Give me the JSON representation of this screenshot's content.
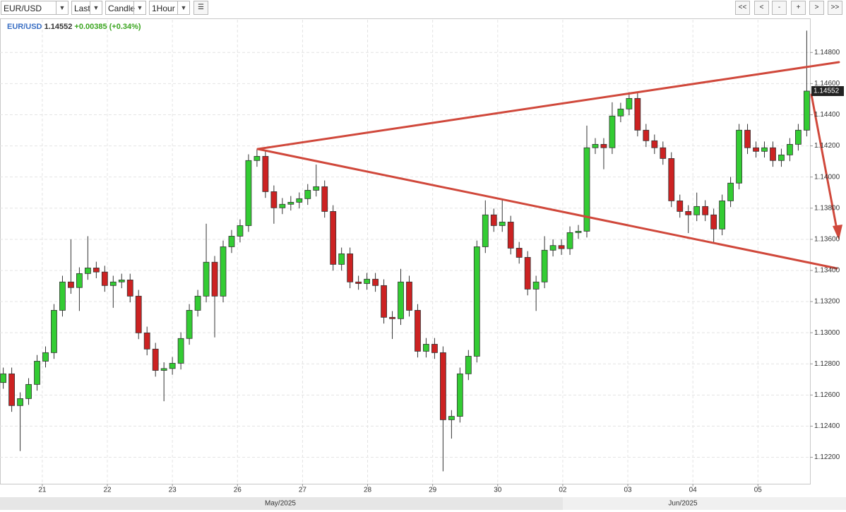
{
  "toolbar": {
    "symbol": "EUR/USD",
    "price_type": "Last",
    "chart_type": "Candle",
    "interval": "1Hour",
    "buttons": [
      "<<",
      "<",
      "-",
      "+",
      ">",
      ">>"
    ]
  },
  "header": {
    "symbol": "EUR/USD",
    "price": "1.14552",
    "change": "+0.00385 (+0.34%)"
  },
  "chart_data": {
    "type": "candlestick",
    "up_color": "#33cc33",
    "down_color": "#cc2222",
    "grid": true,
    "periods": [
      "May/2025",
      "Jun/2025"
    ],
    "last_price": 1.14552,
    "xlim": [
      -0.65,
      11.8
    ],
    "xticks": [
      {
        "value": 0,
        "label": "21"
      },
      {
        "value": 1,
        "label": "22"
      },
      {
        "value": 2,
        "label": "23"
      },
      {
        "value": 3,
        "label": "26"
      },
      {
        "value": 4,
        "label": "27"
      },
      {
        "value": 5,
        "label": "28"
      },
      {
        "value": 6,
        "label": "29"
      },
      {
        "value": 7,
        "label": "30"
      },
      {
        "value": 8,
        "label": "02"
      },
      {
        "value": 9,
        "label": "03"
      },
      {
        "value": 10,
        "label": "04"
      },
      {
        "value": 11,
        "label": "05"
      }
    ],
    "ylim": [
      1.1203,
      1.1501
    ],
    "yticks": [
      {
        "value": 1.122,
        "label": "1.12200"
      },
      {
        "value": 1.124,
        "label": "1.12400"
      },
      {
        "value": 1.126,
        "label": "1.12600"
      },
      {
        "value": 1.128,
        "label": "1.12800"
      },
      {
        "value": 1.13,
        "label": "1.13000"
      },
      {
        "value": 1.132,
        "label": "1.13200"
      },
      {
        "value": 1.134,
        "label": "1.13400"
      },
      {
        "value": 1.136,
        "label": "1.13600"
      },
      {
        "value": 1.138,
        "label": "1.13800"
      },
      {
        "value": 1.14,
        "label": "1.14000"
      },
      {
        "value": 1.142,
        "label": "1.14200"
      },
      {
        "value": 1.144,
        "label": "1.14400"
      },
      {
        "value": 1.146,
        "label": "1.14600"
      },
      {
        "value": 1.148,
        "label": "1.14800"
      }
    ],
    "x": [
      -0.6,
      -0.47,
      -0.34,
      -0.21,
      -0.08,
      0.05,
      0.18,
      0.31,
      0.44,
      0.57,
      0.7,
      0.83,
      0.96,
      1.09,
      1.22,
      1.35,
      1.48,
      1.61,
      1.74,
      1.87,
      2.0,
      2.13,
      2.26,
      2.39,
      2.52,
      2.65,
      2.78,
      2.91,
      3.04,
      3.17,
      3.3,
      3.43,
      3.56,
      3.69,
      3.82,
      3.95,
      4.08,
      4.21,
      4.34,
      4.47,
      4.6,
      4.73,
      4.86,
      4.99,
      5.12,
      5.25,
      5.38,
      5.51,
      5.64,
      5.77,
      5.9,
      6.03,
      6.16,
      6.29,
      6.42,
      6.55,
      6.68,
      6.81,
      6.94,
      7.07,
      7.2,
      7.33,
      7.46,
      7.59,
      7.72,
      7.85,
      7.98,
      8.11,
      8.24,
      8.37,
      8.5,
      8.63,
      8.76,
      8.89,
      9.02,
      9.15,
      9.28,
      9.41,
      9.54,
      9.67,
      9.8,
      9.93,
      10.06,
      10.19,
      10.32,
      10.45,
      10.58,
      10.71,
      10.84,
      10.97,
      11.1,
      11.23,
      11.36,
      11.49,
      11.62,
      11.75
    ],
    "open": [
      1.1268,
      1.12736,
      1.12532,
      1.12577,
      1.12668,
      1.12817,
      1.12872,
      1.13144,
      1.13326,
      1.1329,
      1.1338,
      1.13416,
      1.1339,
      1.13303,
      1.13326,
      1.13339,
      1.13235,
      1.12999,
      1.12895,
      1.12758,
      1.1277,
      1.12804,
      1.12963,
      1.13144,
      1.13235,
      1.13453,
      1.13235,
      1.13552,
      1.1362,
      1.13688,
      1.14106,
      1.14133,
      1.13906,
      1.13802,
      1.13825,
      1.13838,
      1.13861,
      1.13915,
      1.13938,
      1.13779,
      1.13439,
      1.13507,
      1.13326,
      1.13316,
      1.13344,
      1.13303,
      1.13099,
      1.1309,
      1.13326,
      1.13144,
      1.12881,
      1.12926,
      1.12872,
      1.12441,
      1.12463,
      1.12736,
      1.12849,
      1.13552,
      1.13757,
      1.13688,
      1.13711,
      1.13543,
      1.13484,
      1.1328,
      1.13326,
      1.1353,
      1.1356,
      1.1354,
      1.13643,
      1.13652,
      1.14188,
      1.1421,
      1.14188,
      1.14392,
      1.14437,
      1.14505,
      1.14301,
      1.14233,
      1.14188,
      1.14119,
      1.13847,
      1.13779,
      1.13757,
      1.13811,
      1.13757,
      1.13666,
      1.13847,
      1.13961,
      1.14301,
      1.14188,
      1.14165,
      1.14188,
      1.14106,
      1.14142,
      1.1421,
      1.14301
    ],
    "high": [
      1.12776,
      1.12776,
      1.12617,
      1.12708,
      1.12857,
      1.12912,
      1.13184,
      1.13366,
      1.136,
      1.1342,
      1.1362,
      1.13456,
      1.1343,
      1.13366,
      1.13379,
      1.13379,
      1.13275,
      1.13039,
      1.12935,
      1.1281,
      1.12844,
      1.13003,
      1.13184,
      1.13275,
      1.137,
      1.13493,
      1.13592,
      1.1366,
      1.13728,
      1.14146,
      1.1418,
      1.14173,
      1.13946,
      1.13865,
      1.13878,
      1.13901,
      1.13955,
      1.1408,
      1.13978,
      1.13819,
      1.13547,
      1.13547,
      1.13366,
      1.13384,
      1.13384,
      1.13343,
      1.13139,
      1.1341,
      1.13366,
      1.13184,
      1.12966,
      1.12966,
      1.12912,
      1.12503,
      1.12776,
      1.12889,
      1.13592,
      1.1385,
      1.13797,
      1.1386,
      1.13751,
      1.13583,
      1.13524,
      1.13366,
      1.1362,
      1.136,
      1.136,
      1.13683,
      1.13692,
      1.1433,
      1.1425,
      1.1425,
      1.1448,
      1.14477,
      1.14545,
      1.14545,
      1.14341,
      1.14273,
      1.14228,
      1.14159,
      1.13887,
      1.13819,
      1.139,
      1.13851,
      1.13797,
      1.13887,
      1.14001,
      1.14341,
      1.14341,
      1.14228,
      1.14228,
      1.14228,
      1.14182,
      1.1425,
      1.14341,
      1.1494
    ],
    "low": [
      1.1264,
      1.12492,
      1.1224,
      1.12537,
      1.12628,
      1.12777,
      1.12832,
      1.13104,
      1.1325,
      1.1314,
      1.1334,
      1.1335,
      1.13263,
      1.1316,
      1.13286,
      1.13195,
      1.12959,
      1.12855,
      1.12718,
      1.1256,
      1.1273,
      1.12764,
      1.12923,
      1.13104,
      1.13195,
      1.1297,
      1.13195,
      1.13512,
      1.1358,
      1.13648,
      1.14066,
      1.13866,
      1.137,
      1.13762,
      1.13785,
      1.13798,
      1.13821,
      1.13875,
      1.13739,
      1.13399,
      1.13399,
      1.13286,
      1.13276,
      1.13276,
      1.13263,
      1.13059,
      1.1296,
      1.1305,
      1.13104,
      1.12841,
      1.12841,
      1.12832,
      1.1211,
      1.1232,
      1.12423,
      1.12696,
      1.12809,
      1.13512,
      1.13648,
      1.13648,
      1.13503,
      1.13444,
      1.1324,
      1.1314,
      1.13286,
      1.1349,
      1.135,
      1.135,
      1.13603,
      1.13612,
      1.14148,
      1.1405,
      1.14148,
      1.14352,
      1.14397,
      1.14261,
      1.14193,
      1.14148,
      1.14079,
      1.13807,
      1.13739,
      1.1364,
      1.13717,
      1.13717,
      1.1358,
      1.13626,
      1.13807,
      1.13921,
      1.14148,
      1.14125,
      1.14125,
      1.14066,
      1.14066,
      1.14102,
      1.1417,
      1.14261
    ],
    "close": [
      1.12736,
      1.12532,
      1.12577,
      1.12668,
      1.12817,
      1.12872,
      1.13144,
      1.13326,
      1.1329,
      1.1338,
      1.13416,
      1.1339,
      1.13303,
      1.13326,
      1.13339,
      1.13235,
      1.12999,
      1.12895,
      1.12758,
      1.1277,
      1.12804,
      1.12963,
      1.13144,
      1.13235,
      1.13453,
      1.13235,
      1.13552,
      1.1362,
      1.13688,
      1.14106,
      1.14133,
      1.13906,
      1.13802,
      1.13825,
      1.13838,
      1.13861,
      1.13915,
      1.13938,
      1.13779,
      1.13439,
      1.13507,
      1.13326,
      1.13316,
      1.13344,
      1.13303,
      1.13099,
      1.1309,
      1.13326,
      1.13144,
      1.12881,
      1.12926,
      1.12872,
      1.12441,
      1.12463,
      1.12736,
      1.12849,
      1.13552,
      1.13757,
      1.13688,
      1.13711,
      1.13543,
      1.13484,
      1.1328,
      1.13326,
      1.1353,
      1.1356,
      1.1354,
      1.13643,
      1.13652,
      1.14188,
      1.1421,
      1.14188,
      1.14392,
      1.14437,
      1.14505,
      1.14301,
      1.14233,
      1.14188,
      1.14119,
      1.13847,
      1.13779,
      1.13757,
      1.13811,
      1.13757,
      1.13666,
      1.13847,
      1.13961,
      1.14301,
      1.14188,
      1.14165,
      1.14188,
      1.14106,
      1.14142,
      1.1421,
      1.14301,
      1.14552
    ]
  }
}
